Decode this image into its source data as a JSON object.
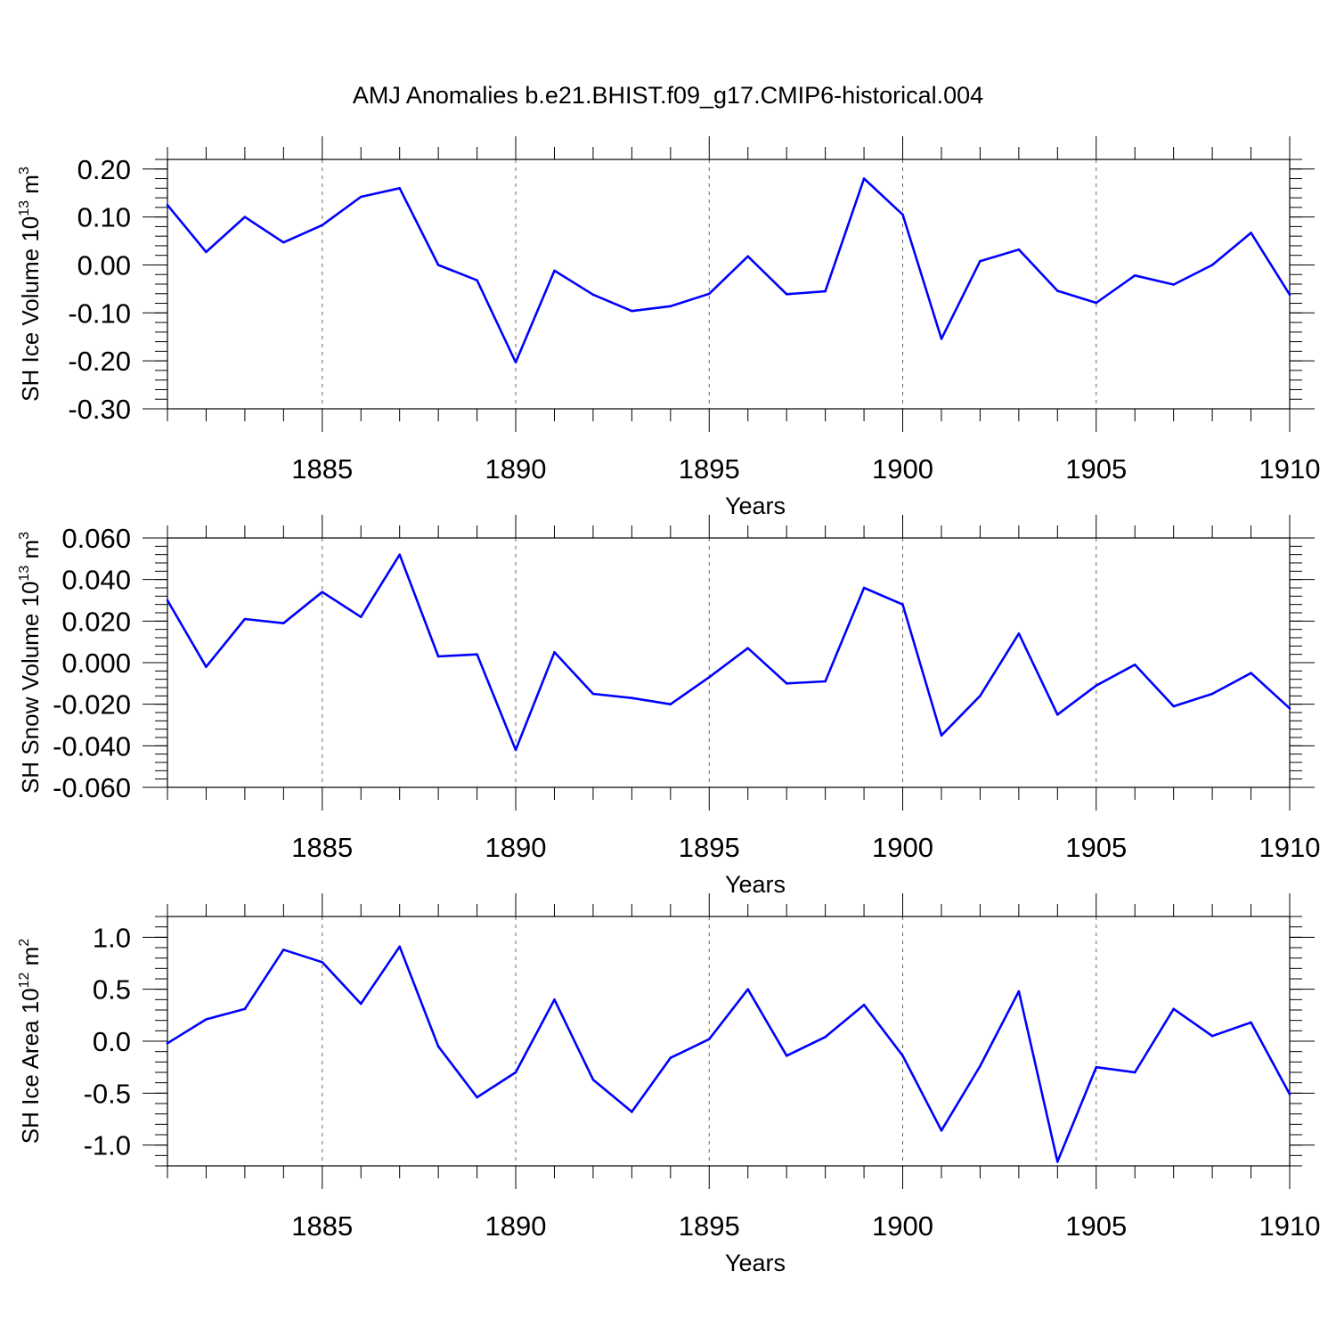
{
  "title": "AMJ Anomalies b.e21.BHIST.f09_g17.CMIP6-historical.004",
  "colors": {
    "series": "#0000ff",
    "axis": "#000000",
    "grid": "#666666"
  },
  "chart_data": [
    {
      "type": "line",
      "title": "AMJ Anomalies b.e21.BHIST.f09_g17.CMIP6-historical.004",
      "xlabel": "Years",
      "ylabel": {
        "main": "SH Ice Volume 10",
        "sup": "13",
        "unit": " m",
        "unit_sup": "3"
      },
      "xlim": [
        1881,
        1910
      ],
      "ylim": [
        -0.3,
        0.22
      ],
      "xticks": [
        1885,
        1890,
        1895,
        1900,
        1905,
        1910
      ],
      "yticks": [
        0.2,
        0.1,
        0.0,
        -0.1,
        -0.2,
        -0.3
      ],
      "ytick_labels": [
        "0.20",
        "0.10",
        "0.00",
        "-0.10",
        "-0.20",
        "-0.30"
      ],
      "yminor_step": 0.02,
      "x": [
        1881,
        1882,
        1883,
        1884,
        1885,
        1886,
        1887,
        1888,
        1889,
        1890,
        1891,
        1892,
        1893,
        1894,
        1895,
        1896,
        1897,
        1898,
        1899,
        1900,
        1901,
        1902,
        1903,
        1904,
        1905,
        1906,
        1907,
        1908,
        1909,
        1910
      ],
      "values": [
        0.125,
        0.027,
        0.1,
        0.047,
        0.083,
        0.142,
        0.16,
        0.0,
        -0.032,
        -0.203,
        -0.012,
        -0.062,
        -0.096,
        -0.086,
        -0.06,
        0.018,
        -0.061,
        -0.055,
        0.18,
        0.105,
        -0.154,
        0.008,
        0.032,
        -0.054,
        -0.079,
        -0.022,
        -0.041,
        0.0,
        0.067,
        -0.062
      ]
    },
    {
      "type": "line",
      "xlabel": "Years",
      "ylabel": {
        "main": "SH Snow Volume 10",
        "sup": "13",
        "unit": " m",
        "unit_sup": "3"
      },
      "xlim": [
        1881,
        1910
      ],
      "ylim": [
        -0.06,
        0.06
      ],
      "xticks": [
        1885,
        1890,
        1895,
        1900,
        1905,
        1910
      ],
      "yticks": [
        0.06,
        0.04,
        0.02,
        0.0,
        -0.02,
        -0.04,
        -0.06
      ],
      "ytick_labels": [
        "0.060",
        "0.040",
        "0.020",
        "0.000",
        "-0.020",
        "-0.040",
        "-0.060"
      ],
      "yminor_step": 0.004,
      "x": [
        1881,
        1882,
        1883,
        1884,
        1885,
        1886,
        1887,
        1888,
        1889,
        1890,
        1891,
        1892,
        1893,
        1894,
        1895,
        1896,
        1897,
        1898,
        1899,
        1900,
        1901,
        1902,
        1903,
        1904,
        1905,
        1906,
        1907,
        1908,
        1909,
        1910
      ],
      "values": [
        0.03,
        -0.002,
        0.021,
        0.019,
        0.034,
        0.022,
        0.052,
        0.003,
        0.004,
        -0.042,
        0.005,
        -0.015,
        -0.017,
        -0.02,
        -0.007,
        0.007,
        -0.01,
        -0.009,
        0.036,
        0.028,
        -0.035,
        -0.016,
        0.014,
        -0.025,
        -0.011,
        -0.001,
        -0.021,
        -0.015,
        -0.005,
        -0.022
      ]
    },
    {
      "type": "line",
      "xlabel": "Years",
      "ylabel": {
        "main": "SH Ice Area 10",
        "sup": "12",
        "unit": " m",
        "unit_sup": "2"
      },
      "xlim": [
        1881,
        1910
      ],
      "ylim": [
        -1.2,
        1.2
      ],
      "xticks": [
        1885,
        1890,
        1895,
        1900,
        1905,
        1910
      ],
      "yticks": [
        1.0,
        0.5,
        0.0,
        -0.5,
        -1.0
      ],
      "ytick_labels": [
        "1.0",
        "0.5",
        "0.0",
        "-0.5",
        "-1.0"
      ],
      "yminor_step": 0.1,
      "x": [
        1881,
        1882,
        1883,
        1884,
        1885,
        1886,
        1887,
        1888,
        1889,
        1890,
        1891,
        1892,
        1893,
        1894,
        1895,
        1896,
        1897,
        1898,
        1899,
        1900,
        1901,
        1902,
        1903,
        1904,
        1905,
        1906,
        1907,
        1908,
        1909,
        1910
      ],
      "values": [
        -0.02,
        0.21,
        0.31,
        0.88,
        0.76,
        0.36,
        0.91,
        -0.05,
        -0.54,
        -0.3,
        0.4,
        -0.37,
        -0.68,
        -0.16,
        0.02,
        0.5,
        -0.14,
        0.04,
        0.35,
        -0.14,
        -0.86,
        -0.24,
        0.48,
        -1.16,
        -0.25,
        -0.3,
        0.31,
        0.05,
        0.18,
        -0.51
      ]
    }
  ]
}
